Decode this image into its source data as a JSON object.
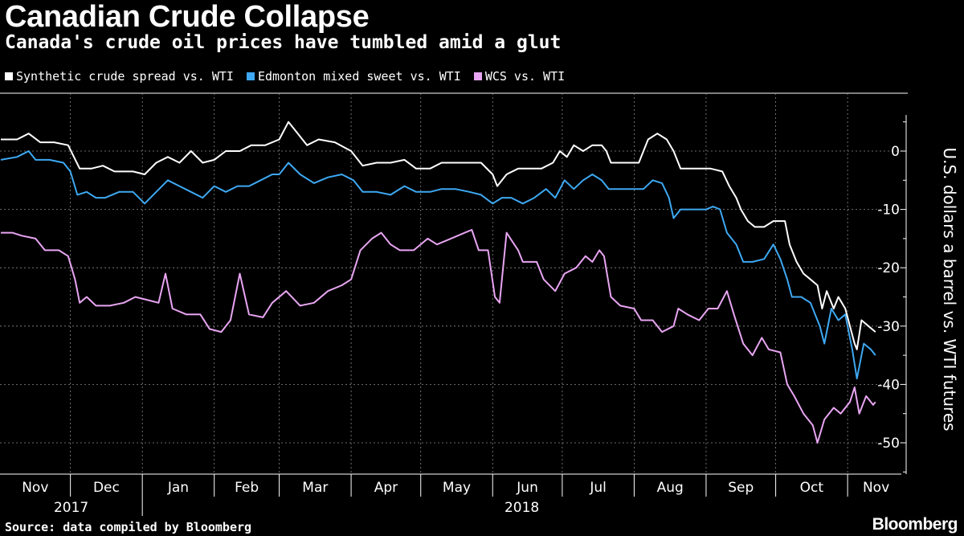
{
  "header": {
    "title": "Canadian Crude Collapse",
    "subtitle": "Canada's crude oil prices have tumbled amid a glut"
  },
  "legend": [
    {
      "label": "Synthetic crude spread vs. WTI",
      "color": "#ffffff"
    },
    {
      "label": "Edmonton mixed sweet vs. WTI",
      "color": "#3ea8f2"
    },
    {
      "label": "WCS vs. WTI",
      "color": "#e8a5f2"
    }
  ],
  "footer": {
    "source": "Source: data compiled by Bloomberg",
    "brand": "Bloomberg"
  },
  "chart_data": {
    "type": "line",
    "title": "Canadian Crude Collapse",
    "subtitle": "Canada's crude oil prices have tumbled amid a glut",
    "ylabel": "U.S. dollars a barrel vs. WTI futures",
    "xlabel": "",
    "ylim": [
      -55,
      6
    ],
    "yticks": [
      0,
      -10,
      -20,
      -30,
      -40,
      -50
    ],
    "y_axis_side": "right",
    "grid": true,
    "legend_position": "top-left",
    "xlim": [
      "2017-11-01",
      "2018-11-06"
    ],
    "month_labels": [
      "Nov",
      "Dec",
      "Jan",
      "Feb",
      "Mar",
      "Apr",
      "May",
      "Jun",
      "Jul",
      "Aug",
      "Sep",
      "Oct",
      "Nov"
    ],
    "year_labels": [
      "2017",
      "2018"
    ],
    "series": [
      {
        "name": "Synthetic crude spread vs. WTI",
        "color": "#ffffff",
        "points": [
          [
            "2017-11-01",
            2
          ],
          [
            "2017-11-08",
            2
          ],
          [
            "2017-11-13",
            3
          ],
          [
            "2017-11-18",
            1.5
          ],
          [
            "2017-11-24",
            1.5
          ],
          [
            "2017-11-30",
            1
          ],
          [
            "2017-12-05",
            -3
          ],
          [
            "2017-12-10",
            -3
          ],
          [
            "2017-12-15",
            -2.5
          ],
          [
            "2017-12-20",
            -3.5
          ],
          [
            "2017-12-28",
            -3.5
          ],
          [
            "2018-01-02",
            -4
          ],
          [
            "2018-01-07",
            -2
          ],
          [
            "2018-01-12",
            -1
          ],
          [
            "2018-01-17",
            -2
          ],
          [
            "2018-01-22",
            0
          ],
          [
            "2018-01-27",
            -2
          ],
          [
            "2018-02-01",
            -1.5
          ],
          [
            "2018-02-06",
            0
          ],
          [
            "2018-02-12",
            0
          ],
          [
            "2018-02-17",
            1
          ],
          [
            "2018-02-23",
            1
          ],
          [
            "2018-03-01",
            2
          ],
          [
            "2018-03-05",
            5
          ],
          [
            "2018-03-09",
            3
          ],
          [
            "2018-03-13",
            1
          ],
          [
            "2018-03-18",
            2
          ],
          [
            "2018-03-25",
            1.5
          ],
          [
            "2018-04-01",
            0
          ],
          [
            "2018-04-06",
            -2.5
          ],
          [
            "2018-04-12",
            -2
          ],
          [
            "2018-04-18",
            -2
          ],
          [
            "2018-04-24",
            -1.5
          ],
          [
            "2018-04-29",
            -3
          ],
          [
            "2018-05-05",
            -3
          ],
          [
            "2018-05-10",
            -2
          ],
          [
            "2018-05-16",
            -2
          ],
          [
            "2018-05-22",
            -2
          ],
          [
            "2018-05-27",
            -2
          ],
          [
            "2018-06-01",
            -4
          ],
          [
            "2018-06-03",
            -6
          ],
          [
            "2018-06-07",
            -4
          ],
          [
            "2018-06-12",
            -3
          ],
          [
            "2018-06-17",
            -3
          ],
          [
            "2018-06-22",
            -3
          ],
          [
            "2018-06-27",
            -2
          ],
          [
            "2018-06-30",
            0
          ],
          [
            "2018-07-03",
            -1
          ],
          [
            "2018-07-06",
            1
          ],
          [
            "2018-07-10",
            0
          ],
          [
            "2018-07-14",
            1
          ],
          [
            "2018-07-18",
            1
          ],
          [
            "2018-07-20",
            0
          ],
          [
            "2018-07-22",
            -2
          ],
          [
            "2018-07-28",
            -2
          ],
          [
            "2018-08-03",
            -2
          ],
          [
            "2018-08-07",
            2
          ],
          [
            "2018-08-11",
            3
          ],
          [
            "2018-08-15",
            2
          ],
          [
            "2018-08-18",
            0
          ],
          [
            "2018-08-21",
            -3
          ],
          [
            "2018-08-27",
            -3
          ],
          [
            "2018-09-03",
            -3
          ],
          [
            "2018-09-08",
            -3.5
          ],
          [
            "2018-09-11",
            -6
          ],
          [
            "2018-09-14",
            -8
          ],
          [
            "2018-09-16",
            -10
          ],
          [
            "2018-09-19",
            -12
          ],
          [
            "2018-09-22",
            -13
          ],
          [
            "2018-09-26",
            -13
          ],
          [
            "2018-09-30",
            -12
          ],
          [
            "2018-10-05",
            -12
          ],
          [
            "2018-10-07",
            -16
          ],
          [
            "2018-10-10",
            -19
          ],
          [
            "2018-10-13",
            -21
          ],
          [
            "2018-10-16",
            -22
          ],
          [
            "2018-10-19",
            -23
          ],
          [
            "2018-10-21",
            -27
          ],
          [
            "2018-10-23",
            -24
          ],
          [
            "2018-10-26",
            -27
          ],
          [
            "2018-10-28",
            -25
          ],
          [
            "2018-10-31",
            -27
          ],
          [
            "2018-11-02",
            -30
          ],
          [
            "2018-11-04",
            -33
          ],
          [
            "2018-11-05",
            -34
          ],
          [
            "2018-11-07",
            -29
          ],
          [
            "2018-11-10",
            -30
          ],
          [
            "2018-11-13",
            -31
          ]
        ]
      },
      {
        "name": "Edmonton mixed sweet vs. WTI",
        "color": "#3ea8f2",
        "points": [
          [
            "2017-11-01",
            -1.5
          ],
          [
            "2017-11-08",
            -1
          ],
          [
            "2017-11-13",
            0
          ],
          [
            "2017-11-16",
            -1.5
          ],
          [
            "2017-11-22",
            -1.5
          ],
          [
            "2017-11-28",
            -2
          ],
          [
            "2017-12-01",
            -3.5
          ],
          [
            "2017-12-04",
            -7.5
          ],
          [
            "2017-12-08",
            -7
          ],
          [
            "2017-12-12",
            -8
          ],
          [
            "2017-12-16",
            -8
          ],
          [
            "2017-12-22",
            -7
          ],
          [
            "2017-12-28",
            -7
          ],
          [
            "2018-01-02",
            -9
          ],
          [
            "2018-01-07",
            -7
          ],
          [
            "2018-01-12",
            -5
          ],
          [
            "2018-01-17",
            -6
          ],
          [
            "2018-01-22",
            -7
          ],
          [
            "2018-01-27",
            -8
          ],
          [
            "2018-02-01",
            -6
          ],
          [
            "2018-02-06",
            -7
          ],
          [
            "2018-02-11",
            -6
          ],
          [
            "2018-02-16",
            -6
          ],
          [
            "2018-02-21",
            -5
          ],
          [
            "2018-02-26",
            -4
          ],
          [
            "2018-03-01",
            -4
          ],
          [
            "2018-03-05",
            -2
          ],
          [
            "2018-03-10",
            -4
          ],
          [
            "2018-03-16",
            -5.5
          ],
          [
            "2018-03-22",
            -4.5
          ],
          [
            "2018-03-28",
            -4
          ],
          [
            "2018-04-02",
            -5
          ],
          [
            "2018-04-06",
            -7
          ],
          [
            "2018-04-12",
            -7
          ],
          [
            "2018-04-18",
            -7.5
          ],
          [
            "2018-04-24",
            -6
          ],
          [
            "2018-04-29",
            -7
          ],
          [
            "2018-05-05",
            -7
          ],
          [
            "2018-05-10",
            -6.5
          ],
          [
            "2018-05-16",
            -6.5
          ],
          [
            "2018-05-22",
            -7
          ],
          [
            "2018-05-27",
            -7.5
          ],
          [
            "2018-06-01",
            -9
          ],
          [
            "2018-06-05",
            -8
          ],
          [
            "2018-06-09",
            -8
          ],
          [
            "2018-06-14",
            -9
          ],
          [
            "2018-06-19",
            -8
          ],
          [
            "2018-06-24",
            -6.5
          ],
          [
            "2018-06-28",
            -8
          ],
          [
            "2018-07-02",
            -5
          ],
          [
            "2018-07-06",
            -6.5
          ],
          [
            "2018-07-10",
            -5
          ],
          [
            "2018-07-14",
            -4
          ],
          [
            "2018-07-18",
            -5
          ],
          [
            "2018-07-21",
            -6.5
          ],
          [
            "2018-07-26",
            -6.5
          ],
          [
            "2018-08-01",
            -6.5
          ],
          [
            "2018-08-05",
            -6.5
          ],
          [
            "2018-08-09",
            -5
          ],
          [
            "2018-08-13",
            -5.5
          ],
          [
            "2018-08-16",
            -8
          ],
          [
            "2018-08-18",
            -11.5
          ],
          [
            "2018-08-21",
            -10
          ],
          [
            "2018-08-26",
            -10
          ],
          [
            "2018-09-01",
            -10
          ],
          [
            "2018-09-04",
            -9.5
          ],
          [
            "2018-09-07",
            -10
          ],
          [
            "2018-09-10",
            -14
          ],
          [
            "2018-09-14",
            -16
          ],
          [
            "2018-09-17",
            -19
          ],
          [
            "2018-09-21",
            -19
          ],
          [
            "2018-09-26",
            -18.5
          ],
          [
            "2018-09-30",
            -16
          ],
          [
            "2018-10-03",
            -18.5
          ],
          [
            "2018-10-06",
            -22
          ],
          [
            "2018-10-08",
            -25
          ],
          [
            "2018-10-12",
            -25
          ],
          [
            "2018-10-16",
            -26
          ],
          [
            "2018-10-20",
            -30
          ],
          [
            "2018-10-22",
            -33
          ],
          [
            "2018-10-25",
            -27
          ],
          [
            "2018-10-28",
            -29
          ],
          [
            "2018-10-31",
            -28
          ],
          [
            "2018-11-03",
            -34
          ],
          [
            "2018-11-05",
            -39
          ],
          [
            "2018-11-08",
            -33
          ],
          [
            "2018-11-11",
            -34
          ],
          [
            "2018-11-13",
            -35
          ]
        ]
      },
      {
        "name": "WCS vs. WTI",
        "color": "#e8a5f2",
        "points": [
          [
            "2017-11-01",
            -14
          ],
          [
            "2017-11-06",
            -14
          ],
          [
            "2017-11-10",
            -14.5
          ],
          [
            "2017-11-16",
            -15
          ],
          [
            "2017-11-20",
            -17
          ],
          [
            "2017-11-26",
            -17
          ],
          [
            "2017-11-30",
            -18
          ],
          [
            "2017-12-03",
            -22
          ],
          [
            "2017-12-05",
            -26
          ],
          [
            "2017-12-08",
            -25
          ],
          [
            "2017-12-12",
            -26.5
          ],
          [
            "2017-12-18",
            -26.5
          ],
          [
            "2017-12-24",
            -26
          ],
          [
            "2017-12-29",
            -25
          ],
          [
            "2018-01-03",
            -25.5
          ],
          [
            "2018-01-08",
            -26
          ],
          [
            "2018-01-11",
            -21
          ],
          [
            "2018-01-14",
            -27
          ],
          [
            "2018-01-20",
            -28
          ],
          [
            "2018-01-26",
            -28
          ],
          [
            "2018-01-30",
            -30.5
          ],
          [
            "2018-02-04",
            -31
          ],
          [
            "2018-02-08",
            -29
          ],
          [
            "2018-02-12",
            -21
          ],
          [
            "2018-02-16",
            -28
          ],
          [
            "2018-02-22",
            -28.5
          ],
          [
            "2018-02-26",
            -26
          ],
          [
            "2018-03-04",
            -24
          ],
          [
            "2018-03-10",
            -26.5
          ],
          [
            "2018-03-16",
            -26
          ],
          [
            "2018-03-22",
            -24
          ],
          [
            "2018-03-28",
            -23
          ],
          [
            "2018-04-01",
            -22
          ],
          [
            "2018-04-05",
            -17
          ],
          [
            "2018-04-10",
            -15
          ],
          [
            "2018-04-14",
            -14
          ],
          [
            "2018-04-18",
            -16
          ],
          [
            "2018-04-22",
            -17
          ],
          [
            "2018-04-28",
            -17
          ],
          [
            "2018-05-04",
            -15
          ],
          [
            "2018-05-08",
            -16
          ],
          [
            "2018-05-14",
            -15
          ],
          [
            "2018-05-20",
            -14
          ],
          [
            "2018-05-23",
            -13.5
          ],
          [
            "2018-05-26",
            -17
          ],
          [
            "2018-05-30",
            -17
          ],
          [
            "2018-06-02",
            -25
          ],
          [
            "2018-06-04",
            -26
          ],
          [
            "2018-06-07",
            -14
          ],
          [
            "2018-06-12",
            -17
          ],
          [
            "2018-06-14",
            -19
          ],
          [
            "2018-06-20",
            -19
          ],
          [
            "2018-06-23",
            -22
          ],
          [
            "2018-06-28",
            -24
          ],
          [
            "2018-07-02",
            -21
          ],
          [
            "2018-07-07",
            -20
          ],
          [
            "2018-07-11",
            -18
          ],
          [
            "2018-07-14",
            -19
          ],
          [
            "2018-07-17",
            -17
          ],
          [
            "2018-07-19",
            -18
          ],
          [
            "2018-07-22",
            -25
          ],
          [
            "2018-07-26",
            -26.5
          ],
          [
            "2018-08-01",
            -27
          ],
          [
            "2018-08-04",
            -29
          ],
          [
            "2018-08-09",
            -29
          ],
          [
            "2018-08-13",
            -31
          ],
          [
            "2018-08-18",
            -30
          ],
          [
            "2018-08-20",
            -27
          ],
          [
            "2018-08-24",
            -28
          ],
          [
            "2018-08-29",
            -29
          ],
          [
            "2018-09-02",
            -27
          ],
          [
            "2018-09-06",
            -27
          ],
          [
            "2018-09-10",
            -24
          ],
          [
            "2018-09-13",
            -28
          ],
          [
            "2018-09-17",
            -33
          ],
          [
            "2018-09-21",
            -35
          ],
          [
            "2018-09-25",
            -32
          ],
          [
            "2018-09-28",
            -34
          ],
          [
            "2018-10-03",
            -34.5
          ],
          [
            "2018-10-06",
            -40
          ],
          [
            "2018-10-09",
            -42
          ],
          [
            "2018-10-13",
            -45
          ],
          [
            "2018-10-17",
            -47
          ],
          [
            "2018-10-19",
            -50
          ],
          [
            "2018-10-22",
            -46
          ],
          [
            "2018-10-26",
            -44
          ],
          [
            "2018-10-29",
            -45
          ],
          [
            "2018-11-02",
            -43
          ],
          [
            "2018-11-04",
            -40.5
          ],
          [
            "2018-11-06",
            -45
          ],
          [
            "2018-11-09",
            -42
          ],
          [
            "2018-11-12",
            -43.5
          ],
          [
            "2018-11-13",
            -43
          ]
        ]
      }
    ]
  }
}
